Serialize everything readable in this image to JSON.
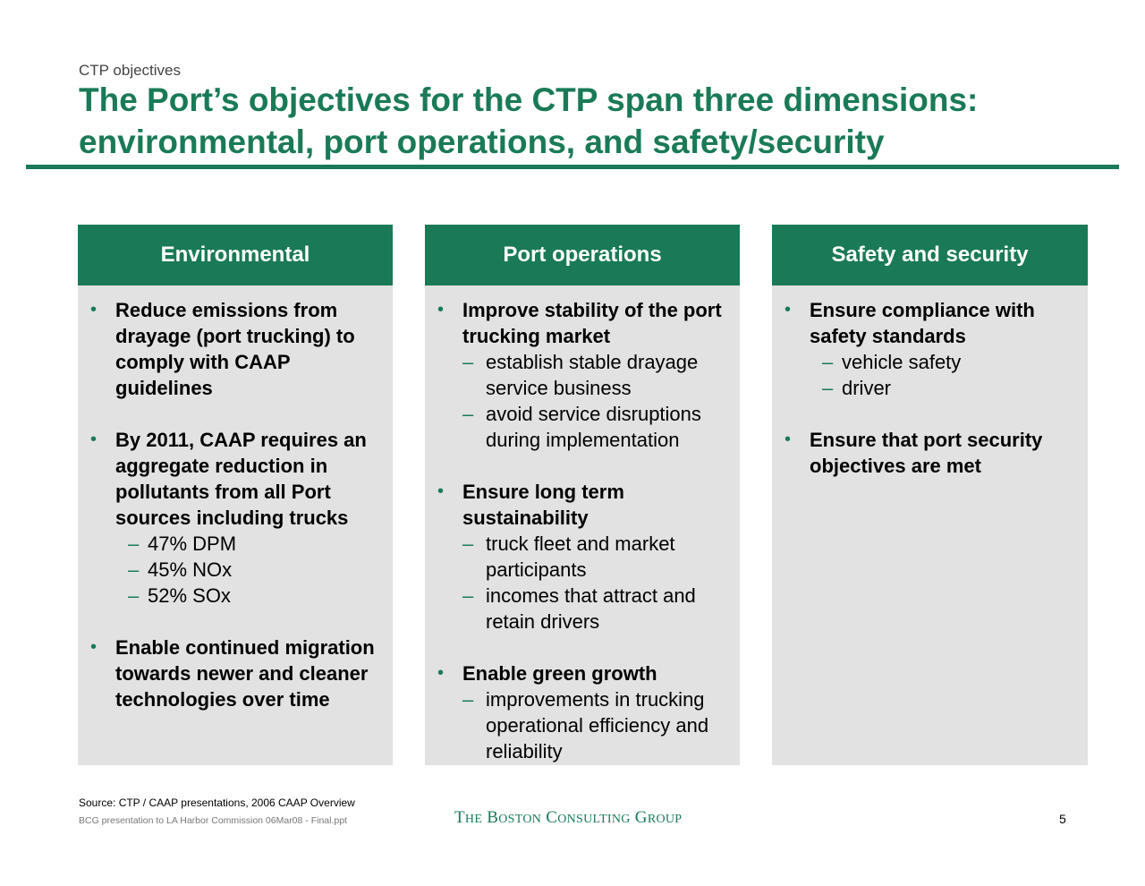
{
  "header": {
    "kicker": "CTP objectives",
    "title_line1": "The Port’s objectives for the CTP span three dimensions:",
    "title_line2": "environmental, port operations, and safety/security"
  },
  "columns": [
    {
      "heading": "Environmental",
      "bullets": [
        {
          "text": "Reduce emissions from drayage (port trucking) to comply with CAAP guidelines",
          "subs": []
        },
        {
          "text": "By 2011, CAAP requires an aggregate reduction in pollutants from all Port sources including trucks",
          "subs": [
            "47% DPM",
            "45% NOx",
            "52% SOx"
          ]
        },
        {
          "text": "Enable continued migration towards newer and cleaner technologies over time",
          "subs": []
        }
      ]
    },
    {
      "heading": "Port operations",
      "bullets": [
        {
          "text": "Improve stability of the port trucking market",
          "subs": [
            "establish stable drayage service business",
            "avoid service disruptions during implementation"
          ]
        },
        {
          "text": "Ensure long term sustainability",
          "subs": [
            "truck fleet and market participants",
            "incomes that attract and retain drivers"
          ]
        },
        {
          "text": "Enable green growth",
          "subs": [
            "improvements in trucking operational efficiency and reliability"
          ]
        }
      ]
    },
    {
      "heading": "Safety and security",
      "bullets": [
        {
          "text": "Ensure compliance with safety standards",
          "subs": [
            "vehicle safety",
            "driver"
          ]
        },
        {
          "text": "Ensure that port security objectives are met",
          "subs": []
        }
      ]
    }
  ],
  "footer": {
    "source": "Source: CTP / CAAP presentations, 2006 CAAP Overview",
    "file": "BCG presentation to LA Harbor Commission 06Mar08 - Final.ppt",
    "logo": "The Boston Consulting Group",
    "page_number": "5"
  },
  "colors": {
    "accent": "#1a7a57",
    "panel": "#e2e2e2"
  },
  "glyphs": {
    "bullet": "•",
    "dash": "–"
  }
}
